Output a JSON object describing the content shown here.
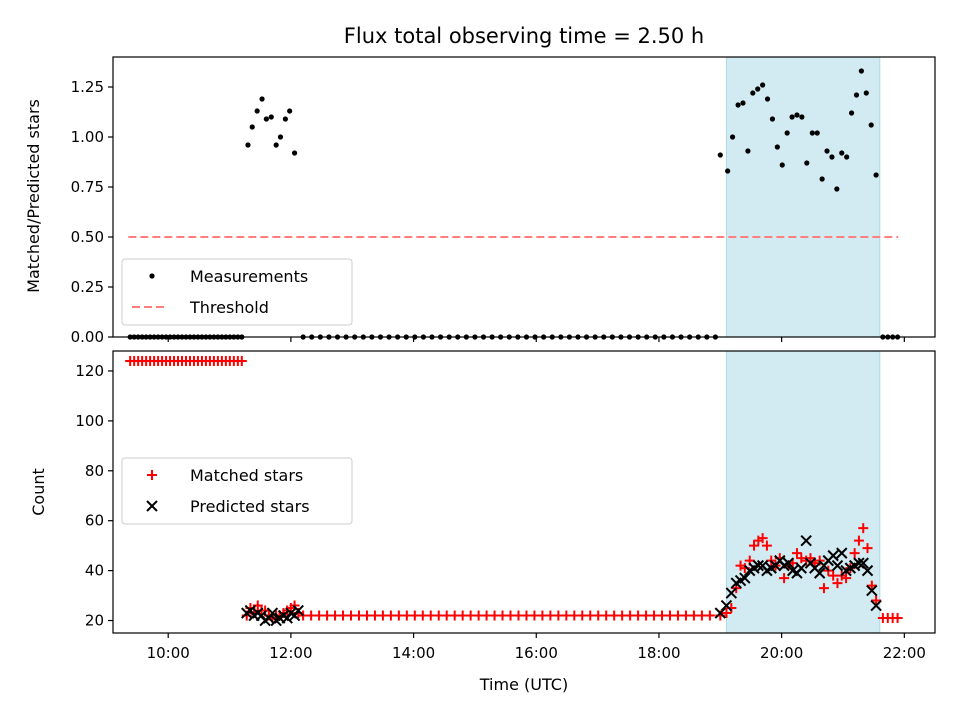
{
  "chart_data": [
    {
      "type": "scatter",
      "title": "Flux total observing time = 2.50 h",
      "xlabel": "",
      "ylabel": "Matched/Predicted stars",
      "xlim": [
        9.1,
        22.5
      ],
      "ylim": [
        0,
        1.4
      ],
      "yticks": [
        0,
        0.25,
        0.5,
        0.75,
        1.0,
        1.25
      ],
      "ytick_labels": [
        "0.00",
        "0.25",
        "0.50",
        "0.75",
        "1.00",
        "1.25"
      ],
      "xticks": [
        10,
        12,
        14,
        16,
        18,
        20,
        22
      ],
      "xtick_labels_shown": false,
      "highlight_span": {
        "x": [
          19.1,
          21.6
        ],
        "color": "#add8e6"
      },
      "threshold": {
        "name": "Threshold",
        "y": 0.5,
        "x": [
          9.35,
          21.9
        ],
        "color": "#ff7f7f",
        "style": "dashed"
      },
      "legend": {
        "position": "lower left",
        "entries": [
          "Measurements",
          "Threshold"
        ]
      },
      "series": [
        {
          "name": "Measurements",
          "color": "#000000",
          "marker": "dot",
          "points": [
            [
              11.3,
              0.96
            ],
            [
              11.37,
              1.05
            ],
            [
              11.45,
              1.13
            ],
            [
              11.53,
              1.19
            ],
            [
              11.6,
              1.09
            ],
            [
              11.68,
              1.1
            ],
            [
              11.76,
              0.96
            ],
            [
              11.83,
              1.0
            ],
            [
              11.91,
              1.09
            ],
            [
              11.98,
              1.13
            ],
            [
              12.06,
              0.92
            ],
            [
              19.0,
              0.91
            ],
            [
              19.12,
              0.83
            ],
            [
              19.2,
              1.0
            ],
            [
              19.29,
              1.16
            ],
            [
              19.37,
              1.17
            ],
            [
              19.45,
              0.93
            ],
            [
              19.53,
              1.22
            ],
            [
              19.61,
              1.24
            ],
            [
              19.69,
              1.26
            ],
            [
              19.77,
              1.19
            ],
            [
              19.85,
              1.09
            ],
            [
              19.93,
              0.95
            ],
            [
              20.01,
              0.86
            ],
            [
              20.09,
              1.02
            ],
            [
              20.17,
              1.1
            ],
            [
              20.25,
              1.11
            ],
            [
              20.33,
              1.1
            ],
            [
              20.41,
              0.87
            ],
            [
              20.5,
              1.02
            ],
            [
              20.58,
              1.02
            ],
            [
              20.66,
              0.79
            ],
            [
              20.74,
              0.93
            ],
            [
              20.82,
              0.9
            ],
            [
              20.9,
              0.74
            ],
            [
              20.98,
              0.92
            ],
            [
              21.06,
              0.9
            ],
            [
              21.14,
              1.12
            ],
            [
              21.22,
              1.21
            ],
            [
              21.3,
              1.33
            ],
            [
              21.38,
              1.22
            ],
            [
              21.46,
              1.06
            ],
            [
              21.54,
              0.81
            ]
          ],
          "zero_runs": [
            [
              9.38,
              11.25,
              0.065
            ],
            [
              12.2,
              18.95,
              0.14
            ],
            [
              21.65,
              21.9,
              0.08
            ]
          ]
        }
      ]
    },
    {
      "type": "scatter",
      "title": "",
      "xlabel": "Time (UTC)",
      "ylabel": "Count",
      "xlim": [
        9.1,
        22.5
      ],
      "ylim": [
        15,
        128
      ],
      "yticks": [
        20,
        40,
        60,
        80,
        100,
        120
      ],
      "ytick_labels": [
        "20",
        "40",
        "60",
        "80",
        "100",
        "120"
      ],
      "xticks": [
        10,
        12,
        14,
        16,
        18,
        20,
        22
      ],
      "xtick_labels": [
        "10:00",
        "12:00",
        "14:00",
        "16:00",
        "18:00",
        "20:00",
        "22:00"
      ],
      "highlight_span": {
        "x": [
          19.1,
          21.6
        ],
        "color": "#add8e6"
      },
      "legend": {
        "position": "center left",
        "entries": [
          "Matched stars",
          "Predicted stars"
        ]
      },
      "series": [
        {
          "name": "Matched stars",
          "color": "#ff0000",
          "marker": "plus",
          "runs": [
            [
              9.38,
              11.25,
              0.065,
              124
            ],
            [
              12.2,
              18.95,
              0.13,
              22
            ],
            [
              21.65,
              21.9,
              0.08,
              21
            ]
          ],
          "points": [
            [
              11.28,
              22
            ],
            [
              11.34,
              25
            ],
            [
              11.4,
              23
            ],
            [
              11.46,
              26
            ],
            [
              11.52,
              24
            ],
            [
              11.58,
              24
            ],
            [
              11.64,
              22
            ],
            [
              11.7,
              21
            ],
            [
              11.76,
              22
            ],
            [
              11.82,
              22
            ],
            [
              11.88,
              23
            ],
            [
              11.94,
              24
            ],
            [
              12.0,
              25
            ],
            [
              12.06,
              26
            ],
            [
              12.12,
              23
            ],
            [
              19.0,
              22
            ],
            [
              19.1,
              23
            ],
            [
              19.18,
              25
            ],
            [
              19.26,
              33
            ],
            [
              19.33,
              42
            ],
            [
              19.4,
              41
            ],
            [
              19.48,
              44
            ],
            [
              19.55,
              50
            ],
            [
              19.62,
              52
            ],
            [
              19.69,
              53
            ],
            [
              19.76,
              50
            ],
            [
              19.83,
              44
            ],
            [
              19.9,
              42
            ],
            [
              19.97,
              45
            ],
            [
              20.04,
              37
            ],
            [
              20.11,
              42
            ],
            [
              20.18,
              43
            ],
            [
              20.25,
              47
            ],
            [
              20.32,
              45
            ],
            [
              20.4,
              44
            ],
            [
              20.47,
              45
            ],
            [
              20.54,
              43
            ],
            [
              20.62,
              44
            ],
            [
              20.69,
              33
            ],
            [
              20.76,
              40
            ],
            [
              20.84,
              38
            ],
            [
              20.91,
              35
            ],
            [
              20.98,
              38
            ],
            [
              21.05,
              37
            ],
            [
              21.12,
              41
            ],
            [
              21.19,
              47
            ],
            [
              21.26,
              52
            ],
            [
              21.33,
              57
            ],
            [
              21.4,
              49
            ],
            [
              21.47,
              34
            ],
            [
              21.54,
              28
            ]
          ]
        },
        {
          "name": "Predicted stars",
          "color": "#000000",
          "marker": "x",
          "points": [
            [
              11.28,
              23
            ],
            [
              11.34,
              24
            ],
            [
              11.4,
              22
            ],
            [
              11.46,
              23
            ],
            [
              11.52,
              22
            ],
            [
              11.58,
              20
            ],
            [
              11.64,
              21
            ],
            [
              11.7,
              23
            ],
            [
              11.76,
              20
            ],
            [
              11.82,
              21
            ],
            [
              11.88,
              22
            ],
            [
              11.94,
              21
            ],
            [
              12.0,
              23
            ],
            [
              12.06,
              22
            ],
            [
              12.12,
              24
            ],
            [
              19.0,
              23
            ],
            [
              19.1,
              26
            ],
            [
              19.18,
              31
            ],
            [
              19.26,
              35
            ],
            [
              19.33,
              36
            ],
            [
              19.4,
              37
            ],
            [
              19.48,
              40
            ],
            [
              19.55,
              41
            ],
            [
              19.62,
              42
            ],
            [
              19.69,
              42
            ],
            [
              19.76,
              40
            ],
            [
              19.83,
              41
            ],
            [
              19.9,
              42
            ],
            [
              19.97,
              44
            ],
            [
              20.04,
              42
            ],
            [
              20.11,
              43
            ],
            [
              20.18,
              40
            ],
            [
              20.25,
              39
            ],
            [
              20.32,
              41
            ],
            [
              20.4,
              52
            ],
            [
              20.47,
              43
            ],
            [
              20.54,
              41
            ],
            [
              20.62,
              39
            ],
            [
              20.69,
              42
            ],
            [
              20.76,
              44
            ],
            [
              20.84,
              46
            ],
            [
              20.91,
              42
            ],
            [
              20.98,
              47
            ],
            [
              21.05,
              40
            ],
            [
              21.12,
              41
            ],
            [
              21.19,
              42
            ],
            [
              21.26,
              43
            ],
            [
              21.33,
              43
            ],
            [
              21.4,
              40
            ],
            [
              21.47,
              32
            ],
            [
              21.54,
              26
            ]
          ]
        }
      ]
    }
  ]
}
